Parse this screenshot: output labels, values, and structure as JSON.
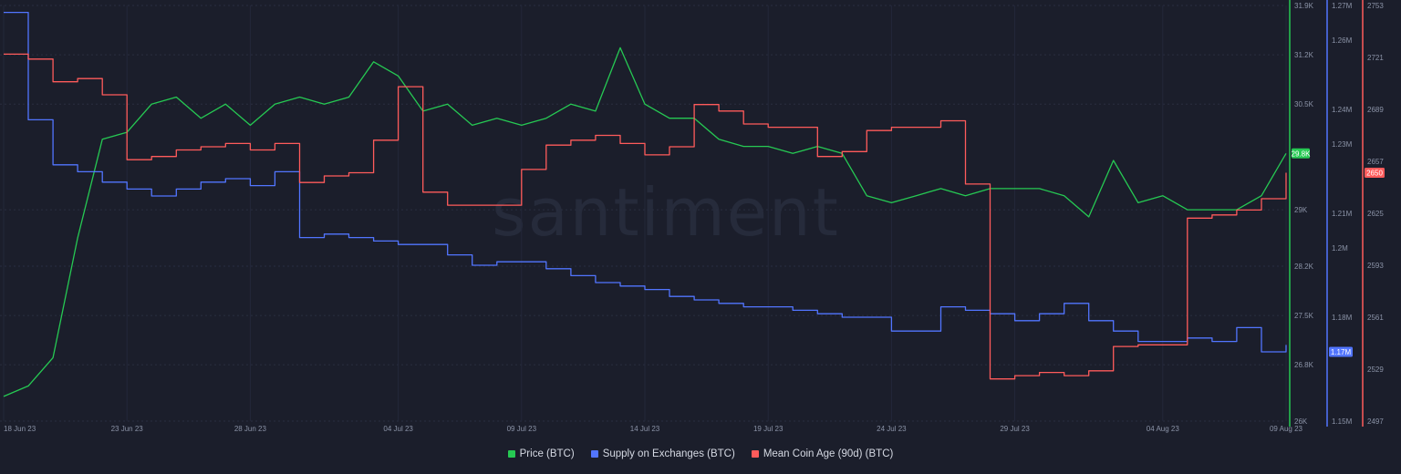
{
  "watermark": "santiment",
  "chart_data": {
    "type": "line",
    "x_dates": [
      "2023-06-18",
      "2023-08-09"
    ],
    "x_ticks": [
      {
        "label": "18 Jun 23",
        "date": "2023-06-18"
      },
      {
        "label": "23 Jun 23",
        "date": "2023-06-23"
      },
      {
        "label": "28 Jun 23",
        "date": "2023-06-28"
      },
      {
        "label": "04 Jul 23",
        "date": "2023-07-04"
      },
      {
        "label": "09 Jul 23",
        "date": "2023-07-09"
      },
      {
        "label": "14 Jul 23",
        "date": "2023-07-14"
      },
      {
        "label": "19 Jul 23",
        "date": "2023-07-19"
      },
      {
        "label": "24 Jul 23",
        "date": "2023-07-24"
      },
      {
        "label": "29 Jul 23",
        "date": "2023-07-29"
      },
      {
        "label": "04 Aug 23",
        "date": "2023-08-04"
      },
      {
        "label": "09 Aug 23",
        "date": "2023-08-09"
      }
    ],
    "grid": true,
    "legend_position": "bottom-center",
    "axes": [
      {
        "id": "price",
        "color": "#26c953",
        "range": [
          26000,
          31900
        ],
        "ticks": [
          {
            "v": 31900,
            "label": "31.9K"
          },
          {
            "v": 31200,
            "label": "31.2K"
          },
          {
            "v": 30500,
            "label": "30.5K"
          },
          {
            "v": 29000,
            "label": "29K"
          },
          {
            "v": 28200,
            "label": "28.2K"
          },
          {
            "v": 27500,
            "label": "27.5K"
          },
          {
            "v": 26800,
            "label": "26.8K"
          },
          {
            "v": 26000,
            "label": "26K"
          }
        ],
        "current": {
          "value": 29800,
          "label": "29.8K"
        }
      },
      {
        "id": "supply",
        "color": "#5275ff",
        "range": [
          1150000,
          1270000
        ],
        "ticks": [
          {
            "v": 1270000,
            "label": "1.27M"
          },
          {
            "v": 1260000,
            "label": "1.26M"
          },
          {
            "v": 1240000,
            "label": "1.24M"
          },
          {
            "v": 1230000,
            "label": "1.23M"
          },
          {
            "v": 1210000,
            "label": "1.21M"
          },
          {
            "v": 1200000,
            "label": "1.2M"
          },
          {
            "v": 1180000,
            "label": "1.18M"
          },
          {
            "v": 1150000,
            "label": "1.15M"
          }
        ],
        "current": {
          "value": 1170000,
          "label": "1.17M"
        }
      },
      {
        "id": "age",
        "color": "#ff5b5b",
        "range": [
          2497,
          2753
        ],
        "ticks": [
          {
            "v": 2753,
            "label": "2753"
          },
          {
            "v": 2721,
            "label": "2721"
          },
          {
            "v": 2689,
            "label": "2689"
          },
          {
            "v": 2657,
            "label": "2657"
          },
          {
            "v": 2625,
            "label": "2625"
          },
          {
            "v": 2593,
            "label": "2593"
          },
          {
            "v": 2561,
            "label": "2561"
          },
          {
            "v": 2529,
            "label": "2529"
          },
          {
            "v": 2497,
            "label": "2497"
          }
        ],
        "current": {
          "value": 2650,
          "label": "2650"
        }
      }
    ],
    "series": [
      {
        "name": "Price (BTC)",
        "axis": "price",
        "color": "#26c953",
        "step": false,
        "points": [
          [
            "2023-06-18",
            26350
          ],
          [
            "2023-06-19",
            26500
          ],
          [
            "2023-06-20",
            26900
          ],
          [
            "2023-06-21",
            28600
          ],
          [
            "2023-06-22",
            30000
          ],
          [
            "2023-06-23",
            30100
          ],
          [
            "2023-06-24",
            30500
          ],
          [
            "2023-06-25",
            30600
          ],
          [
            "2023-06-26",
            30300
          ],
          [
            "2023-06-27",
            30500
          ],
          [
            "2023-06-28",
            30200
          ],
          [
            "2023-06-29",
            30500
          ],
          [
            "2023-06-30",
            30600
          ],
          [
            "2023-07-01",
            30500
          ],
          [
            "2023-07-02",
            30600
          ],
          [
            "2023-07-03",
            31100
          ],
          [
            "2023-07-04",
            30900
          ],
          [
            "2023-07-05",
            30400
          ],
          [
            "2023-07-06",
            30500
          ],
          [
            "2023-07-07",
            30200
          ],
          [
            "2023-07-08",
            30300
          ],
          [
            "2023-07-09",
            30200
          ],
          [
            "2023-07-10",
            30300
          ],
          [
            "2023-07-11",
            30500
          ],
          [
            "2023-07-12",
            30400
          ],
          [
            "2023-07-13",
            31300
          ],
          [
            "2023-07-14",
            30500
          ],
          [
            "2023-07-15",
            30300
          ],
          [
            "2023-07-16",
            30300
          ],
          [
            "2023-07-17",
            30000
          ],
          [
            "2023-07-18",
            29900
          ],
          [
            "2023-07-19",
            29900
          ],
          [
            "2023-07-20",
            29800
          ],
          [
            "2023-07-21",
            29900
          ],
          [
            "2023-07-22",
            29800
          ],
          [
            "2023-07-23",
            29200
          ],
          [
            "2023-07-24",
            29100
          ],
          [
            "2023-07-25",
            29200
          ],
          [
            "2023-07-26",
            29300
          ],
          [
            "2023-07-27",
            29200
          ],
          [
            "2023-07-28",
            29300
          ],
          [
            "2023-07-29",
            29300
          ],
          [
            "2023-07-30",
            29300
          ],
          [
            "2023-07-31",
            29200
          ],
          [
            "2023-08-01",
            28900
          ],
          [
            "2023-08-02",
            29700
          ],
          [
            "2023-08-03",
            29100
          ],
          [
            "2023-08-04",
            29200
          ],
          [
            "2023-08-05",
            29000
          ],
          [
            "2023-08-06",
            29000
          ],
          [
            "2023-08-07",
            29000
          ],
          [
            "2023-08-08",
            29200
          ],
          [
            "2023-08-09",
            29800
          ]
        ]
      },
      {
        "name": "Supply on Exchanges (BTC)",
        "axis": "supply",
        "color": "#5275ff",
        "step": true,
        "points": [
          [
            "2023-06-18",
            1268000
          ],
          [
            "2023-06-19",
            1237000
          ],
          [
            "2023-06-20",
            1224000
          ],
          [
            "2023-06-21",
            1222000
          ],
          [
            "2023-06-22",
            1219000
          ],
          [
            "2023-06-23",
            1217000
          ],
          [
            "2023-06-24",
            1215000
          ],
          [
            "2023-06-25",
            1217000
          ],
          [
            "2023-06-26",
            1219000
          ],
          [
            "2023-06-27",
            1220000
          ],
          [
            "2023-06-28",
            1218000
          ],
          [
            "2023-06-29",
            1222000
          ],
          [
            "2023-06-30",
            1203000
          ],
          [
            "2023-07-01",
            1204000
          ],
          [
            "2023-07-02",
            1203000
          ],
          [
            "2023-07-03",
            1202000
          ],
          [
            "2023-07-04",
            1201000
          ],
          [
            "2023-07-05",
            1201000
          ],
          [
            "2023-07-06",
            1198000
          ],
          [
            "2023-07-07",
            1195000
          ],
          [
            "2023-07-08",
            1196000
          ],
          [
            "2023-07-09",
            1196000
          ],
          [
            "2023-07-10",
            1194000
          ],
          [
            "2023-07-11",
            1192000
          ],
          [
            "2023-07-12",
            1190000
          ],
          [
            "2023-07-13",
            1189000
          ],
          [
            "2023-07-14",
            1188000
          ],
          [
            "2023-07-15",
            1186000
          ],
          [
            "2023-07-16",
            1185000
          ],
          [
            "2023-07-17",
            1184000
          ],
          [
            "2023-07-18",
            1183000
          ],
          [
            "2023-07-19",
            1183000
          ],
          [
            "2023-07-20",
            1182000
          ],
          [
            "2023-07-21",
            1181000
          ],
          [
            "2023-07-22",
            1180000
          ],
          [
            "2023-07-23",
            1180000
          ],
          [
            "2023-07-24",
            1176000
          ],
          [
            "2023-07-25",
            1176000
          ],
          [
            "2023-07-26",
            1183000
          ],
          [
            "2023-07-27",
            1182000
          ],
          [
            "2023-07-28",
            1181000
          ],
          [
            "2023-07-29",
            1179000
          ],
          [
            "2023-07-30",
            1181000
          ],
          [
            "2023-07-31",
            1184000
          ],
          [
            "2023-08-01",
            1179000
          ],
          [
            "2023-08-02",
            1176000
          ],
          [
            "2023-08-03",
            1173000
          ],
          [
            "2023-08-04",
            1173000
          ],
          [
            "2023-08-05",
            1174000
          ],
          [
            "2023-08-06",
            1173000
          ],
          [
            "2023-08-07",
            1177000
          ],
          [
            "2023-08-08",
            1170000
          ],
          [
            "2023-08-09",
            1172000
          ]
        ]
      },
      {
        "name": "Mean Coin Age (90d) (BTC)",
        "axis": "age",
        "color": "#ff5b5b",
        "step": true,
        "points": [
          [
            "2023-06-18",
            2723
          ],
          [
            "2023-06-19",
            2720
          ],
          [
            "2023-06-20",
            2706
          ],
          [
            "2023-06-21",
            2708
          ],
          [
            "2023-06-22",
            2698
          ],
          [
            "2023-06-23",
            2658
          ],
          [
            "2023-06-24",
            2660
          ],
          [
            "2023-06-25",
            2664
          ],
          [
            "2023-06-26",
            2666
          ],
          [
            "2023-06-27",
            2668
          ],
          [
            "2023-06-28",
            2664
          ],
          [
            "2023-06-29",
            2668
          ],
          [
            "2023-06-30",
            2644
          ],
          [
            "2023-07-01",
            2648
          ],
          [
            "2023-07-02",
            2650
          ],
          [
            "2023-07-03",
            2670
          ],
          [
            "2023-07-04",
            2703
          ],
          [
            "2023-07-05",
            2638
          ],
          [
            "2023-07-06",
            2630
          ],
          [
            "2023-07-07",
            2630
          ],
          [
            "2023-07-08",
            2630
          ],
          [
            "2023-07-09",
            2652
          ],
          [
            "2023-07-10",
            2667
          ],
          [
            "2023-07-11",
            2670
          ],
          [
            "2023-07-12",
            2673
          ],
          [
            "2023-07-13",
            2668
          ],
          [
            "2023-07-14",
            2661
          ],
          [
            "2023-07-15",
            2666
          ],
          [
            "2023-07-16",
            2692
          ],
          [
            "2023-07-17",
            2688
          ],
          [
            "2023-07-18",
            2680
          ],
          [
            "2023-07-19",
            2678
          ],
          [
            "2023-07-20",
            2678
          ],
          [
            "2023-07-21",
            2660
          ],
          [
            "2023-07-22",
            2663
          ],
          [
            "2023-07-23",
            2676
          ],
          [
            "2023-07-24",
            2678
          ],
          [
            "2023-07-25",
            2678
          ],
          [
            "2023-07-26",
            2682
          ],
          [
            "2023-07-27",
            2643
          ],
          [
            "2023-07-28",
            2523
          ],
          [
            "2023-07-29",
            2525
          ],
          [
            "2023-07-30",
            2527
          ],
          [
            "2023-07-31",
            2525
          ],
          [
            "2023-08-01",
            2528
          ],
          [
            "2023-08-02",
            2543
          ],
          [
            "2023-08-03",
            2544
          ],
          [
            "2023-08-04",
            2544
          ],
          [
            "2023-08-05",
            2622
          ],
          [
            "2023-08-06",
            2624
          ],
          [
            "2023-08-07",
            2627
          ],
          [
            "2023-08-08",
            2634
          ],
          [
            "2023-08-09",
            2650
          ]
        ]
      }
    ],
    "legend": [
      {
        "label": "Price (BTC)",
        "color": "#26c953"
      },
      {
        "label": "Supply on Exchanges (BTC)",
        "color": "#5275ff"
      },
      {
        "label": "Mean Coin Age (90d) (BTC)",
        "color": "#ff5b5b"
      }
    ]
  }
}
